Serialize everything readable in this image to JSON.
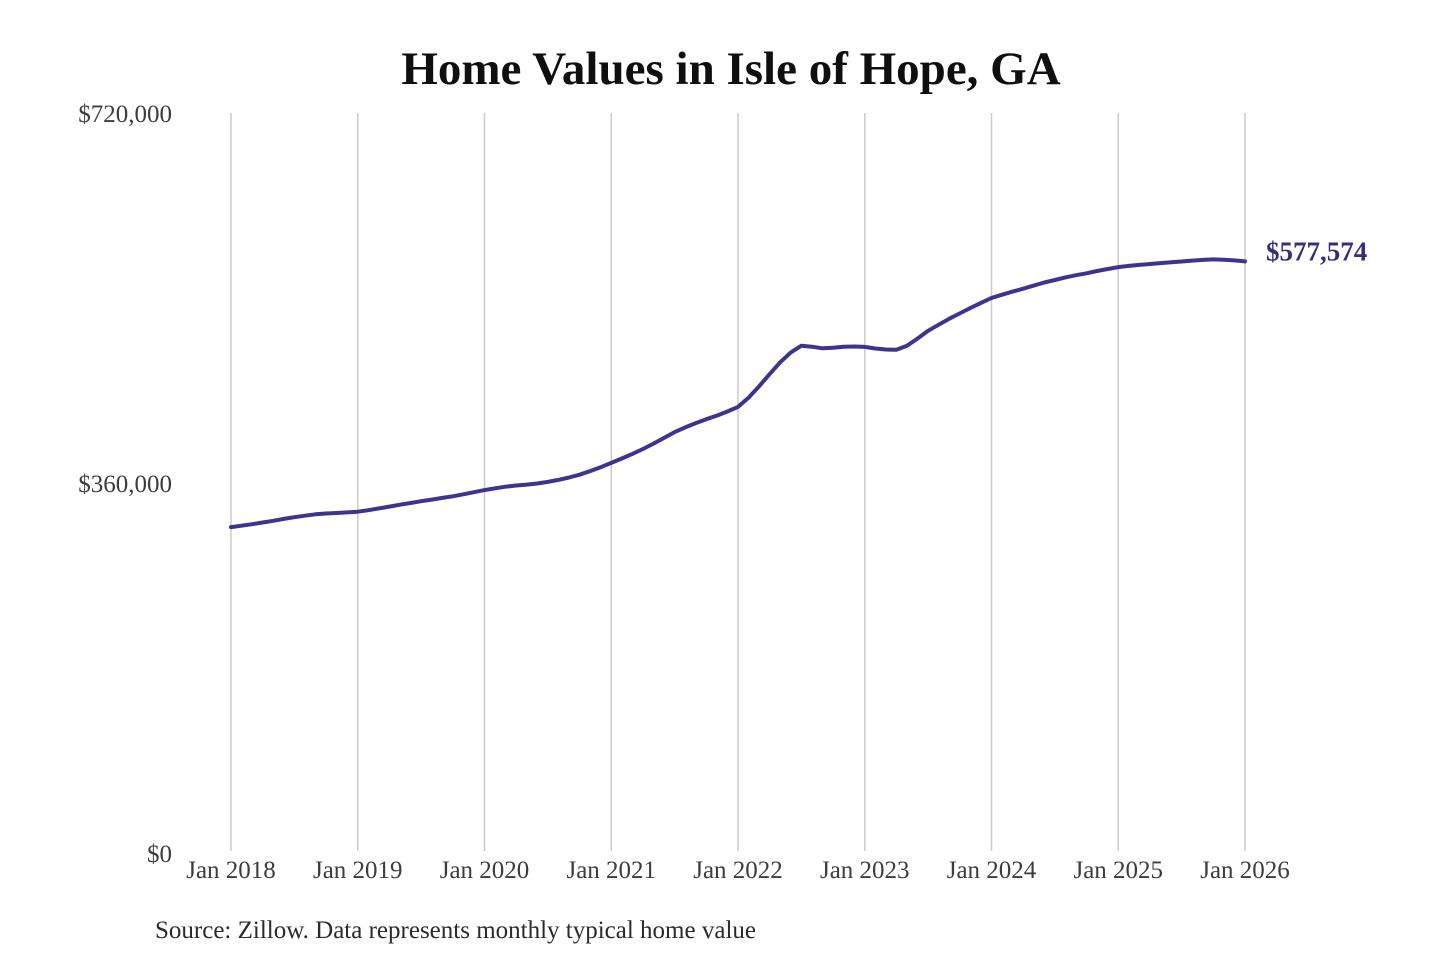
{
  "title": "Home Values in Isle of Hope, GA",
  "end_label": "$577,574",
  "source_note": "Source: Zillow. Data represents monthly typical home value",
  "colors": {
    "line": "#3b3590",
    "grid": "#cccccc",
    "tick_text": "#3d3d3d",
    "end_label_text": "#34307d",
    "title_text": "#0f0f0f",
    "background": "#ffffff"
  },
  "chart_data": {
    "type": "line",
    "title": "Home Values in Isle of Hope, GA",
    "series_name": "Monthly typical home value",
    "xlabel": "",
    "ylabel": "",
    "ylim": [
      0,
      720000
    ],
    "grid": "vertical-only",
    "legend": "none",
    "frequency": "monthly",
    "x_start_month": "Jan 2018",
    "x_end_month": "Jan 2026",
    "x_ticks": [
      "Jan 2018",
      "Jan 2019",
      "Jan 2020",
      "Jan 2021",
      "Jan 2022",
      "Jan 2023",
      "Jan 2024",
      "Jan 2025",
      "Jan 2026"
    ],
    "y_ticks": [
      {
        "label": "$0",
        "value": 0
      },
      {
        "label": "$360,000",
        "value": 360000
      },
      {
        "label": "$720,000",
        "value": 720000
      }
    ],
    "final_value": 577574,
    "values": [
      319000,
      320400,
      321900,
      323500,
      325200,
      327000,
      328700,
      330100,
      331500,
      332300,
      332800,
      333300,
      334000,
      335500,
      337200,
      339000,
      340800,
      342500,
      344200,
      345800,
      347400,
      349000,
      351000,
      353000,
      355000,
      356800,
      358300,
      359500,
      360400,
      361500,
      363000,
      365000,
      367300,
      370000,
      373500,
      377300,
      381500,
      385800,
      390300,
      395000,
      400300,
      405800,
      411500,
      416000,
      420200,
      424000,
      427500,
      431500,
      436000,
      445000,
      456000,
      468000,
      479500,
      489000,
      495500,
      494600,
      493000,
      493600,
      494600,
      494800,
      494400,
      492800,
      491800,
      491500,
      495500,
      502500,
      510000,
      516000,
      521800,
      527000,
      532200,
      537200,
      542000,
      545200,
      548200,
      551000,
      554000,
      557000,
      559500,
      562000,
      564100,
      566000,
      568200,
      570200,
      572000,
      573200,
      574200,
      575000,
      575900,
      576800,
      577500,
      578300,
      579000,
      579500,
      579200,
      578500,
      577574
    ]
  }
}
